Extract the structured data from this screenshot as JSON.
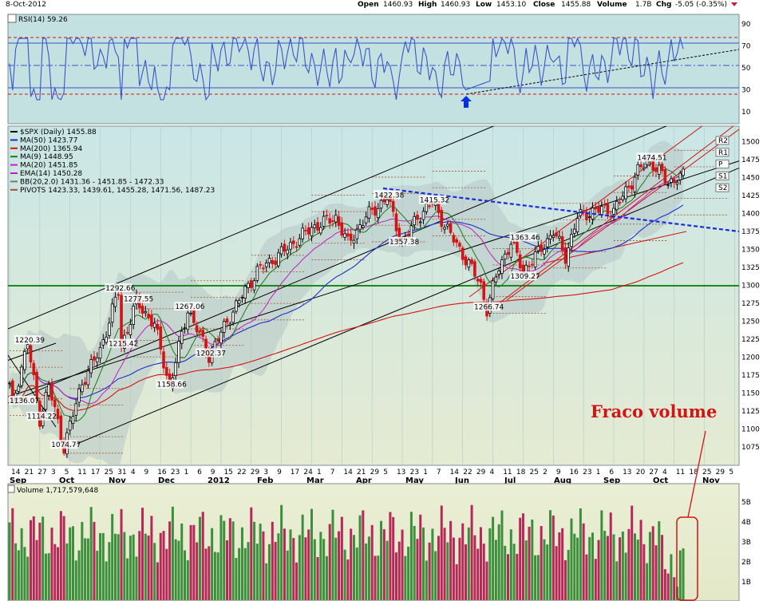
{
  "header": {
    "date": "8-Oct-2012",
    "open_label": "Open",
    "open": "1460.93",
    "high_label": "High",
    "high": "1460.93",
    "low_label": "Low",
    "low": "1453.10",
    "close_label": "Close",
    "close": "1455.88",
    "volume_label": "Volume",
    "volume": "1.7B",
    "chg_label": "Chg",
    "chg": "-5.05 (-0.35%)"
  },
  "rsi": {
    "label": "RSI(14) 59.26",
    "ticks": [
      "90",
      "70",
      "50",
      "30",
      "10"
    ]
  },
  "legend": [
    {
      "text": "$SPX (Daily) 1455.88",
      "color": "#000000"
    },
    {
      "text": "MA(50) 1423.77",
      "color": "#1f2ec8"
    },
    {
      "text": "MA(200) 1365.94",
      "color": "#d21414"
    },
    {
      "text": "MA(9) 1448.95",
      "color": "#1a7a1a"
    },
    {
      "text": "MA(20) 1451.85",
      "color": "#c020c0"
    },
    {
      "text": "EMA(14) 1450.28",
      "color": "#c020c0"
    },
    {
      "text": "BB(20,2.0) 1431.36 - 1451.85 - 1472.33",
      "color": "#777777"
    },
    {
      "text": "PIVOTS 1423.33, 1439.61, 1455.28, 1471.56, 1487.23",
      "color": "#a0522d"
    }
  ],
  "pivot_tags": [
    "R2",
    "R1",
    "P",
    "S1",
    "S2"
  ],
  "price_labels": [
    {
      "text": "1220.39",
      "price": 1220.39,
      "idx": 6
    },
    {
      "text": "1136.07",
      "price": 1136.07,
      "idx": 1
    },
    {
      "text": "1114.22",
      "price": 1114.22,
      "idx": 10
    },
    {
      "text": "1074.77",
      "price": 1074.77,
      "idx": 18
    },
    {
      "text": "1292.66",
      "price": 1292.66,
      "idx": 36
    },
    {
      "text": "1277.55",
      "price": 1277.55,
      "idx": 42
    },
    {
      "text": "1215.42",
      "price": 1215.42,
      "idx": 37
    },
    {
      "text": "1267.06",
      "price": 1267.06,
      "idx": 59
    },
    {
      "text": "1202.37",
      "price": 1202.37,
      "idx": 66
    },
    {
      "text": "1158.66",
      "price": 1158.66,
      "idx": 53
    },
    {
      "text": "1422.38",
      "price": 1422.38,
      "idx": 125
    },
    {
      "text": "1415.32",
      "price": 1415.32,
      "idx": 140
    },
    {
      "text": "1357.38",
      "price": 1357.38,
      "idx": 130
    },
    {
      "text": "1363.46",
      "price": 1363.46,
      "idx": 170
    },
    {
      "text": "1309.27",
      "price": 1309.27,
      "idx": 170
    },
    {
      "text": "1266.74",
      "price": 1266.74,
      "idx": 158
    },
    {
      "text": "1474.51",
      "price": 1474.51,
      "idx": 212
    }
  ],
  "annotation": {
    "text": "Fraco volume",
    "color": "#d21414"
  },
  "volume": {
    "label": "Volume 1,717,579,648",
    "ticks": [
      "5B",
      "4B",
      "3B",
      "2B",
      "1B"
    ]
  },
  "colors": {
    "up": "#2a8a2a",
    "down": "#d21414",
    "rsi_line": "#3a55c8",
    "green_line": "#1a8a1a",
    "blue_dash": "#1a2ae0"
  },
  "chart_data": {
    "type": "candlestick",
    "symbol": "$SPX (Daily)",
    "ylim": [
      1055,
      1520
    ],
    "y_ticks": [
      1075,
      1100,
      1125,
      1150,
      1175,
      1200,
      1225,
      1250,
      1275,
      1300,
      1325,
      1350,
      1375,
      1400,
      1425,
      1450,
      1475,
      1500
    ],
    "x_ticks": [
      "14",
      "21",
      "27",
      "3",
      "5",
      "11",
      "17",
      "25",
      "31",
      "4",
      "9",
      "16",
      "23",
      "1",
      "6",
      "9",
      "15",
      "22",
      "29",
      "3",
      "9",
      "17",
      "24",
      "1",
      "7",
      "14",
      "21",
      "29",
      "5",
      "13",
      "23",
      "1",
      "7",
      "14",
      "22",
      "29",
      "4",
      "11",
      "18",
      "25",
      "2",
      "9",
      "16",
      "23",
      "1",
      "6",
      "13",
      "20",
      "27",
      "4",
      "11"
    ],
    "months": [
      "Sep",
      "Oct",
      "Nov",
      "Dec",
      "2012",
      "Feb",
      "Mar",
      "Apr",
      "May",
      "Jun",
      "Jul",
      "Aug",
      "Sep",
      "Oct",
      "Nov"
    ],
    "future_ticks": [
      "18",
      "25",
      "29",
      "5"
    ],
    "anchors": [
      [
        0,
        1160
      ],
      [
        1,
        1136
      ],
      [
        6,
        1220
      ],
      [
        10,
        1114
      ],
      [
        13,
        1160
      ],
      [
        18,
        1075
      ],
      [
        24,
        1165
      ],
      [
        30,
        1210
      ],
      [
        36,
        1292
      ],
      [
        37,
        1215
      ],
      [
        42,
        1277
      ],
      [
        48,
        1245
      ],
      [
        53,
        1158
      ],
      [
        59,
        1267
      ],
      [
        66,
        1202
      ],
      [
        74,
        1265
      ],
      [
        82,
        1320
      ],
      [
        90,
        1345
      ],
      [
        100,
        1380
      ],
      [
        108,
        1395
      ],
      [
        112,
        1358
      ],
      [
        118,
        1395
      ],
      [
        125,
        1422
      ],
      [
        130,
        1357
      ],
      [
        135,
        1395
      ],
      [
        140,
        1415
      ],
      [
        146,
        1370
      ],
      [
        152,
        1330
      ],
      [
        156,
        1300
      ],
      [
        158,
        1267
      ],
      [
        162,
        1325
      ],
      [
        166,
        1360
      ],
      [
        170,
        1320
      ],
      [
        175,
        1345
      ],
      [
        180,
        1375
      ],
      [
        184,
        1340
      ],
      [
        188,
        1395
      ],
      [
        194,
        1405
      ],
      [
        200,
        1405
      ],
      [
        204,
        1430
      ],
      [
        208,
        1460
      ],
      [
        212,
        1474
      ],
      [
        215,
        1460
      ],
      [
        218,
        1440
      ],
      [
        221,
        1452
      ]
    ],
    "volume_ylim": [
      0,
      5.5
    ],
    "rsi_ylim": [
      0,
      100
    ],
    "pivots": [
      1423.33,
      1439.61,
      1455.28,
      1471.56,
      1487.23
    ],
    "last_close": 1455.88
  }
}
